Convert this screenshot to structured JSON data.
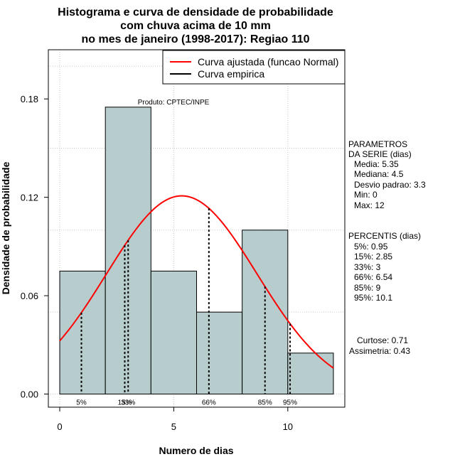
{
  "title_lines": [
    "Histograma e curva de densidade de probabilidade",
    "com chuva acima de 10 mm",
    "no mes de janeiro (1998-2017): Regiao 110"
  ],
  "produto": "Produto: CPTEC/INPE",
  "legend": {
    "fitted_label": "Curva ajustada (funcao Normal)",
    "empirical_label": "Curva empirica",
    "fitted_color": "#ff0000",
    "empirical_color": "#000000"
  },
  "parametros": [
    "PARAMETROS",
    "DA SERIE (dias)",
    "Media: 5.35",
    "Mediana: 4.5",
    "Desvio padrao: 3.3",
    "Min: 0",
    "Max: 12"
  ],
  "percentis": [
    "PERCENTIS (dias)",
    "5%: 0.95",
    "15%: 2.85",
    "33%: 3",
    "66%: 6.54",
    "85%: 9",
    "95%: 10.1"
  ],
  "shape": [
    "Curtose: 0.71",
    "Assimetria: 0.43"
  ],
  "chart_data": {
    "type": "bar",
    "xlabel": "Numero de dias",
    "ylabel": "Densidade de probabilidade",
    "xlim": [
      -0.5,
      12.5
    ],
    "ylim": [
      -0.008,
      0.21
    ],
    "x_ticks": [
      0,
      5,
      10
    ],
    "x_tick_labels": [
      "0",
      "5",
      "10"
    ],
    "y_ticks": [
      0.0,
      0.06,
      0.12,
      0.18
    ],
    "y_tick_labels": [
      "0.00",
      "0.06",
      "0.12",
      "0.18"
    ],
    "grid": true,
    "legend_position": "top-right",
    "bar_color": "#b7cdcd",
    "bins": [
      {
        "start": 0,
        "end": 2,
        "density": 0.075
      },
      {
        "start": 2,
        "end": 4,
        "density": 0.175
      },
      {
        "start": 4,
        "end": 6,
        "density": 0.075
      },
      {
        "start": 6,
        "end": 8,
        "density": 0.05
      },
      {
        "start": 8,
        "end": 10,
        "density": 0.1
      },
      {
        "start": 10,
        "end": 12,
        "density": 0.025
      }
    ],
    "normal_fit": {
      "mean": 5.35,
      "sd": 3.3,
      "x_from": 0,
      "x_to": 12
    },
    "percentile_lines": [
      {
        "label": "5%",
        "x": 0.95
      },
      {
        "label": "15%",
        "x": 2.85
      },
      {
        "label": "33%",
        "x": 3
      },
      {
        "label": "66%",
        "x": 6.54
      },
      {
        "label": "85%",
        "x": 9
      },
      {
        "label": "95%",
        "x": 10.1
      }
    ]
  }
}
